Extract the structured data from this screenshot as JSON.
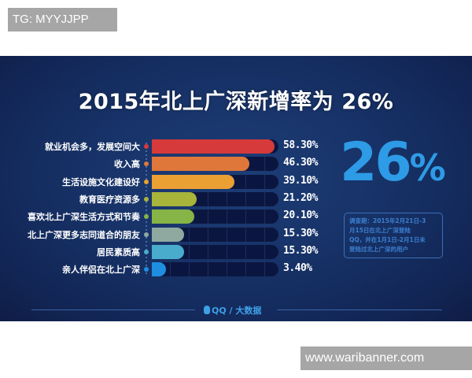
{
  "watermarks": {
    "top": "TG: MYYJJPP",
    "bottom": "www.waribanner.com"
  },
  "infographic": {
    "title": "2015年北上广深新增率为 26%",
    "headline_value": "26",
    "headline_unit": "%",
    "note_lines": [
      "调查期：2015年2月21日-3",
      "月15日在北上广深登陆",
      "QQ，并在1月1日-2月1日未",
      "登陆过北上广深的用户"
    ],
    "footer": {
      "brand_qq": "QQ",
      "separator": "/",
      "brand_bigdata": "大数据"
    }
  },
  "chart_data": {
    "type": "bar",
    "orientation": "horizontal",
    "title": "2015年北上广深新增率为 26%",
    "categories": [
      "就业机会多，发展空间大",
      "收入高",
      "生活设施文化建设好",
      "教育医疗资源多",
      "喜欢北上广深生活方式和节奏",
      "北上广深更多志同道合的朋友",
      "居民素质高",
      "亲人伴侣在北上广深"
    ],
    "values": [
      58.3,
      46.3,
      39.1,
      21.2,
      20.1,
      15.3,
      15.3,
      3.4
    ],
    "value_labels": [
      "58.30%",
      "46.30%",
      "39.10%",
      "21.20%",
      "20.10%",
      "15.30%",
      "15.30%",
      "3.40%"
    ],
    "colors": [
      "#d63a3a",
      "#e0773a",
      "#eba034",
      "#a8b43a",
      "#86b446",
      "#8fa9a1",
      "#4aaccc",
      "#1e8ee0"
    ],
    "xlim": [
      0,
      60
    ],
    "xlabel": "",
    "ylabel": "",
    "grid": true,
    "legend": "none"
  },
  "colors": {
    "panel_bg": "#173267",
    "accent_blue": "#2e9be6",
    "track": "#0b1640"
  }
}
